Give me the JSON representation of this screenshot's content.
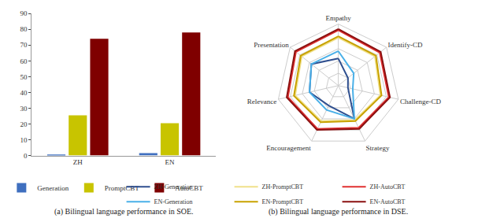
{
  "chart_data": [
    {
      "type": "bar",
      "title": "(a) Bilingual language performance in SOE.",
      "categories": [
        "ZH",
        "EN"
      ],
      "series": [
        {
          "name": "Generation",
          "color": "#3f6fbf",
          "values": [
            0.3,
            1.5
          ]
        },
        {
          "name": "PromptCBT",
          "color": "#c8c400",
          "values": [
            25.5,
            20.5
          ]
        },
        {
          "name": "AutoCBT",
          "color": "#7f0000",
          "values": [
            74,
            78
          ]
        }
      ],
      "ylim": [
        0,
        90
      ],
      "yticks": [
        0,
        10,
        20,
        30,
        40,
        50,
        60,
        70,
        80,
        90
      ],
      "grid": false,
      "legend": "bottom"
    },
    {
      "type": "radar",
      "title": "(b) Bilingual language performance in DSE.",
      "categories": [
        "Empathy",
        "Identify-CD",
        "Challenge-CD",
        "Strategy",
        "Encouragement",
        "Relevance",
        "Presentation"
      ],
      "series": [
        {
          "name": "ZH-Generation",
          "color": "#2f4f8f",
          "values": [
            2.2,
            1.0,
            0.8,
            3.0,
            1.8,
            2.4,
            2.8
          ]
        },
        {
          "name": "ZH-PromptCBT",
          "color": "#f0e08a",
          "values": [
            3.9,
            3.8,
            3.5,
            3.1,
            3.2,
            3.6,
            3.8
          ]
        },
        {
          "name": "ZH-AutoCBT",
          "color": "#e03030",
          "values": [
            4.5,
            4.3,
            4.2,
            3.8,
            3.9,
            4.2,
            4.4
          ]
        },
        {
          "name": "EN-Generation",
          "color": "#4ab0e8",
          "values": [
            2.8,
            1.6,
            1.2,
            3.0,
            2.2,
            2.4,
            2.8
          ]
        },
        {
          "name": "EN-PromptCBT",
          "color": "#c8a200",
          "values": [
            4.0,
            3.9,
            3.6,
            3.2,
            3.3,
            3.7,
            3.9
          ]
        },
        {
          "name": "EN-AutoCBT",
          "color": "#8b1010",
          "values": [
            4.6,
            4.4,
            4.3,
            3.9,
            4.0,
            4.3,
            4.5
          ]
        }
      ],
      "ylim": [
        0,
        5
      ],
      "yticks": [
        1,
        2,
        3,
        4,
        5
      ],
      "grid": true,
      "tick_labels": false,
      "legend": "bottom"
    }
  ]
}
